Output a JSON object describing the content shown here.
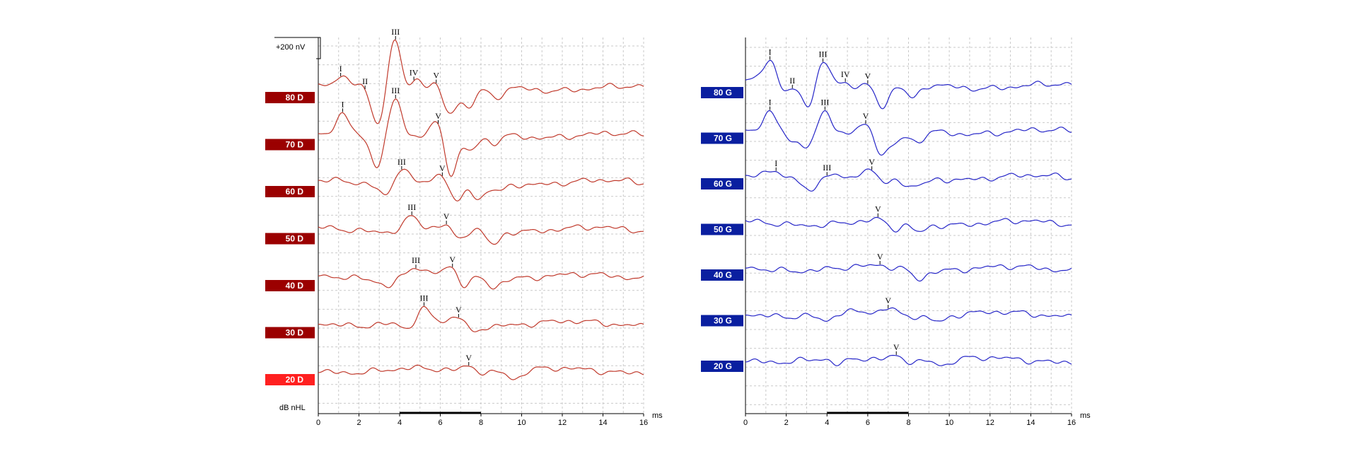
{
  "chart_data": [
    {
      "type": "line",
      "x_unit": "ms",
      "xlim": [
        0,
        16
      ],
      "x_ticks": [
        "0",
        "2",
        "4",
        "6",
        "8",
        "10",
        "12",
        "14",
        "16"
      ],
      "scale_label": "+200 nV",
      "level_axis_label": "dB nHL",
      "grid": true,
      "trace_color": "#c0392b",
      "stimulus_bar_ms": [
        4,
        8
      ],
      "series": [
        {
          "name": "80 D",
          "label_color": "#9b0000",
          "peaks": [
            {
              "label": "I",
              "ms": 1.1,
              "amp": 0.35
            },
            {
              "label": "II",
              "ms": 2.3,
              "amp": 0.1
            },
            {
              "label": "III",
              "ms": 3.8,
              "amp": 1.8
            },
            {
              "label": "IV",
              "ms": 4.7,
              "amp": 0.55
            },
            {
              "label": "V",
              "ms": 5.8,
              "amp": 0.3
            }
          ],
          "troughs": [
            {
              "ms": 2.9,
              "amp": -1.2
            },
            {
              "ms": 4.3,
              "amp": -0.5
            },
            {
              "ms": 6.4,
              "amp": -0.9
            },
            {
              "ms": 7.4,
              "amp": -0.7
            },
            {
              "ms": 8.7,
              "amp": -0.4
            }
          ]
        },
        {
          "name": "70 D",
          "label_color": "#9b0000",
          "peaks": [
            {
              "label": "I",
              "ms": 1.2,
              "amp": 0.6
            },
            {
              "label": "III",
              "ms": 3.8,
              "amp": 1.3
            },
            {
              "label": "V",
              "ms": 5.9,
              "amp": 0.6
            }
          ],
          "troughs": [
            {
              "ms": 2.9,
              "amp": -1.0
            },
            {
              "ms": 6.5,
              "amp": -1.4
            },
            {
              "ms": 7.5,
              "amp": -0.6
            },
            {
              "ms": 8.6,
              "amp": -0.3
            }
          ]
        },
        {
          "name": "60 D",
          "label_color": "#9b0000",
          "peaks": [
            {
              "label": "III",
              "ms": 4.1,
              "amp": 0.6
            },
            {
              "label": "V",
              "ms": 6.1,
              "amp": 0.3
            }
          ],
          "troughs": [
            {
              "ms": 3.3,
              "amp": -0.4
            },
            {
              "ms": 6.8,
              "amp": -0.8
            },
            {
              "ms": 7.9,
              "amp": -0.6
            },
            {
              "ms": 8.9,
              "amp": -0.3
            }
          ]
        },
        {
          "name": "50 D",
          "label_color": "#9b0000",
          "peaks": [
            {
              "label": "III",
              "ms": 4.6,
              "amp": 0.45
            },
            {
              "label": "V",
              "ms": 6.3,
              "amp": 0.1
            }
          ],
          "troughs": [
            {
              "ms": 6.9,
              "amp": -0.4
            },
            {
              "ms": 8.6,
              "amp": -0.5
            }
          ]
        },
        {
          "name": "40 D",
          "label_color": "#9b0000",
          "peaks": [
            {
              "label": "III",
              "ms": 4.8,
              "amp": 0.3
            },
            {
              "label": "V",
              "ms": 6.6,
              "amp": 0.35
            }
          ],
          "troughs": [
            {
              "ms": 3.4,
              "amp": -0.3
            },
            {
              "ms": 7.1,
              "amp": -0.4
            },
            {
              "ms": 8.6,
              "amp": -0.3
            }
          ]
        },
        {
          "name": "30 D",
          "label_color": "#9b0000",
          "peaks": [
            {
              "label": "III",
              "ms": 5.2,
              "amp": 0.4
            },
            {
              "label": "V",
              "ms": 6.9,
              "amp": 0.25
            }
          ],
          "troughs": [
            {
              "ms": 4.4,
              "amp": -0.2
            },
            {
              "ms": 7.6,
              "amp": -0.3
            }
          ]
        },
        {
          "name": "20 D",
          "label_color": "#ff2020",
          "peaks": [
            {
              "label": "V",
              "ms": 7.4,
              "amp": 0.2
            }
          ],
          "troughs": [
            {
              "ms": 9.7,
              "amp": -0.25
            }
          ]
        }
      ]
    },
    {
      "type": "line",
      "x_unit": "ms",
      "xlim": [
        0,
        16
      ],
      "x_ticks": [
        "0",
        "2",
        "4",
        "6",
        "8",
        "10",
        "12",
        "14",
        "16"
      ],
      "grid": true,
      "trace_color": "#2626c8",
      "stimulus_bar_ms": [
        4,
        8
      ],
      "series": [
        {
          "name": "80 G",
          "label_color": "#0a1fa0",
          "peaks": [
            {
              "label": "I",
              "ms": 1.2,
              "amp": 0.8
            },
            {
              "label": "II",
              "ms": 2.3,
              "amp": 0.0
            },
            {
              "label": "III",
              "ms": 3.8,
              "amp": 0.85
            },
            {
              "label": "IV",
              "ms": 4.9,
              "amp": 0.15
            },
            {
              "label": "V",
              "ms": 6.0,
              "amp": 0.1
            }
          ],
          "troughs": [
            {
              "ms": 0.5,
              "amp": 0.2
            },
            {
              "ms": 1.9,
              "amp": -0.3
            },
            {
              "ms": 3.1,
              "amp": -0.65
            },
            {
              "ms": 4.4,
              "amp": 0.1
            },
            {
              "ms": 6.7,
              "amp": -0.7
            },
            {
              "ms": 8.2,
              "amp": -0.5
            }
          ]
        },
        {
          "name": "70 G",
          "label_color": "#0a1fa0",
          "peaks": [
            {
              "label": "I",
              "ms": 1.2,
              "amp": 0.55
            },
            {
              "label": "III",
              "ms": 3.9,
              "amp": 0.8
            },
            {
              "label": "V",
              "ms": 5.9,
              "amp": 0.25
            }
          ],
          "troughs": [
            {
              "ms": 2.3,
              "amp": -0.3
            },
            {
              "ms": 3.1,
              "amp": -0.45
            },
            {
              "ms": 6.7,
              "amp": -0.75
            },
            {
              "ms": 7.4,
              "amp": -0.4
            },
            {
              "ms": 8.4,
              "amp": -0.4
            }
          ]
        },
        {
          "name": "60 G",
          "label_color": "#0a1fa0",
          "peaks": [
            {
              "label": "I",
              "ms": 1.5,
              "amp": 0.2
            },
            {
              "label": "III",
              "ms": 4.0,
              "amp": 0.25
            },
            {
              "label": "V",
              "ms": 6.2,
              "amp": 0.35
            }
          ],
          "troughs": [
            {
              "ms": 3.2,
              "amp": -0.45
            },
            {
              "ms": 6.8,
              "amp": -0.4
            },
            {
              "ms": 8.0,
              "amp": -0.35
            },
            {
              "ms": 8.8,
              "amp": -0.2
            }
          ]
        },
        {
          "name": "50 G",
          "label_color": "#0a1fa0",
          "peaks": [
            {
              "label": "V",
              "ms": 6.5,
              "amp": 0.05
            }
          ],
          "troughs": [
            {
              "ms": 7.3,
              "amp": -0.25
            },
            {
              "ms": 8.5,
              "amp": -0.3
            }
          ]
        },
        {
          "name": "40 G",
          "label_color": "#0a1fa0",
          "peaks": [
            {
              "label": "V",
              "ms": 6.6,
              "amp": 0.05
            }
          ],
          "troughs": [
            {
              "ms": 8.5,
              "amp": -0.3
            }
          ]
        },
        {
          "name": "30 G",
          "label_color": "#0a1fa0",
          "peaks": [
            {
              "label": "V",
              "ms": 7.0,
              "amp": 0.2
            }
          ],
          "troughs": [
            {
              "ms": 3.9,
              "amp": -0.25
            },
            {
              "ms": 9.5,
              "amp": -0.2
            }
          ]
        },
        {
          "name": "20 G",
          "label_color": "#0a1fa0",
          "peaks": [
            {
              "label": "V",
              "ms": 7.4,
              "amp": 0.2
            }
          ],
          "troughs": [
            {
              "ms": 4.6,
              "amp": -0.25
            },
            {
              "ms": 9.8,
              "amp": -0.15
            }
          ]
        }
      ]
    }
  ]
}
